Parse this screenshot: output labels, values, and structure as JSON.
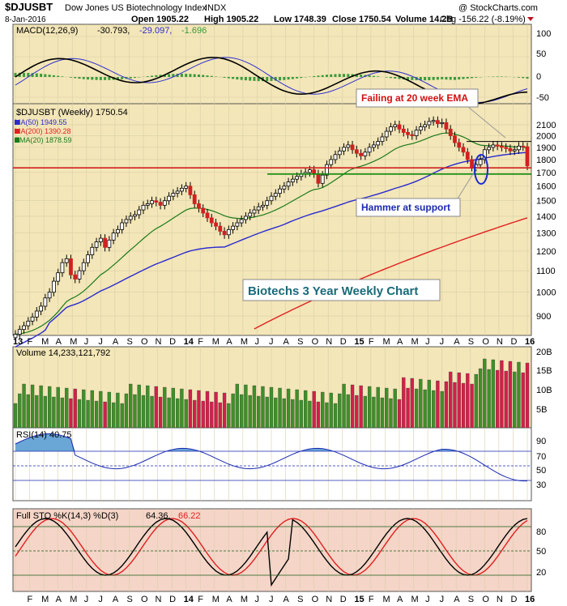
{
  "header": {
    "symbol": "$DJUSBT",
    "name": "Dow Jones US Biotechnology Index",
    "exchange": "INDX",
    "watermark": "@ StockCharts.com",
    "date": "8-Jan-2016",
    "open": "Open 1905.22",
    "high": "High 1905.22",
    "low": "Low 1748.39",
    "close": "Close 1750.54",
    "volume": "Volume 14.2B",
    "chg": "Chg -156.22 (-8.19%)"
  },
  "macd": {
    "label": "MACD(12,26,9)",
    "v1": "-30.793,",
    "v2": "-29.097,",
    "v3": "-1.696",
    "ticks": [
      "100",
      "50",
      "0",
      "-50"
    ]
  },
  "price": {
    "title": "$DJUSBT (Weekly) 1750.54",
    "legend": [
      {
        "text": "MA(50) 1949.55",
        "color": "#2a2ad0"
      },
      {
        "text": "MA(200) 1390.28",
        "color": "#e02020"
      },
      {
        "text": "EMA(20) 1878.59",
        "color": "#1a7a1a"
      }
    ],
    "ticks": [
      "2100",
      "2000",
      "1900",
      "1800",
      "1700",
      "1600",
      "1500",
      "1400",
      "1300",
      "1200",
      "1100",
      "1000",
      "900"
    ],
    "annotations": {
      "ema": "Failing at 20 week EMA",
      "hammer": "Hammer at support",
      "title": "Biotechs 3 Year Weekly Chart"
    }
  },
  "xaxis": {
    "main": [
      "13",
      "F",
      "M",
      "A",
      "M",
      "J",
      "J",
      "A",
      "S",
      "O",
      "N",
      "D",
      "14",
      "F",
      "M",
      "A",
      "M",
      "J",
      "J",
      "A",
      "S",
      "O",
      "N",
      "D",
      "15",
      "F",
      "M",
      "A",
      "M",
      "J",
      "J",
      "A",
      "S",
      "O",
      "N",
      "D",
      "16"
    ],
    "bottom": [
      "F",
      "M",
      "A",
      "M",
      "J",
      "J",
      "A",
      "S",
      "O",
      "N",
      "D",
      "14",
      "F",
      "M",
      "A",
      "M",
      "J",
      "J",
      "A",
      "S",
      "O",
      "N",
      "D",
      "15",
      "F",
      "M",
      "A",
      "M",
      "J",
      "J",
      "A",
      "S",
      "O",
      "N",
      "D",
      "16"
    ]
  },
  "volume": {
    "label": "Volume 14,233,121,792",
    "ticks": [
      "20B",
      "15B",
      "10B",
      "5B"
    ]
  },
  "rsi": {
    "label": "RSI(14) 40.75",
    "ticks": [
      "90",
      "70",
      "50",
      "30"
    ]
  },
  "sto": {
    "label": "Full STO %K(14,3) %D(3)",
    "k": "64.36,",
    "d": "66.22",
    "ticks": [
      "80",
      "50",
      "20"
    ]
  },
  "colors": {
    "up": "#3f8f2a",
    "down": "#d2204a",
    "panel": "#f3e6b8",
    "volume_panel": "#f3e6b8",
    "sto_panel": "#f5d5c8"
  },
  "chart_data": {
    "type": "candlestick",
    "title": "$DJUSBT (Weekly) 1750.54",
    "xlabel": "",
    "ylabel": "",
    "ylim": [
      850,
      2200
    ],
    "support_levels": [
      1735,
      1725
    ],
    "resistance_level": 1950,
    "weekly_close": [
      830,
      848,
      862,
      880,
      896,
      920,
      940,
      975,
      1000,
      1050,
      1090,
      1140,
      1160,
      1080,
      1060,
      1100,
      1140,
      1180,
      1220,
      1250,
      1270,
      1220,
      1260,
      1300,
      1320,
      1360,
      1380,
      1400,
      1410,
      1440,
      1470,
      1480,
      1500,
      1490,
      1470,
      1500,
      1530,
      1550,
      1565,
      1585,
      1600,
      1540,
      1480,
      1450,
      1420,
      1390,
      1360,
      1340,
      1310,
      1290,
      1320,
      1340,
      1360,
      1380,
      1400,
      1420,
      1440,
      1460,
      1470,
      1500,
      1530,
      1550,
      1580,
      1600,
      1630,
      1650,
      1670,
      1690,
      1700,
      1720,
      1690,
      1620,
      1680,
      1760,
      1800,
      1840,
      1870,
      1900,
      1920,
      1880,
      1850,
      1830,
      1860,
      1900,
      1920,
      1950,
      1990,
      2040,
      2080,
      2100,
      2060,
      2030,
      2010,
      2000,
      2050,
      2080,
      2100,
      2130,
      2140,
      2110,
      2120,
      2060,
      2000,
      1940,
      1900,
      1860,
      1800,
      1740,
      1760,
      1800,
      1880,
      1900,
      1920,
      1910,
      1900,
      1890,
      1870,
      1880,
      1910,
      1905,
      1750
    ],
    "ma50": {
      "name": "MA(50)",
      "start_value": 850,
      "end_value": 1949.55
    },
    "ma200": {
      "name": "MA(200)",
      "start_value": 850,
      "end_value": 1390.28
    },
    "ema20": {
      "name": "EMA(20)",
      "end_value": 1878.59
    }
  }
}
